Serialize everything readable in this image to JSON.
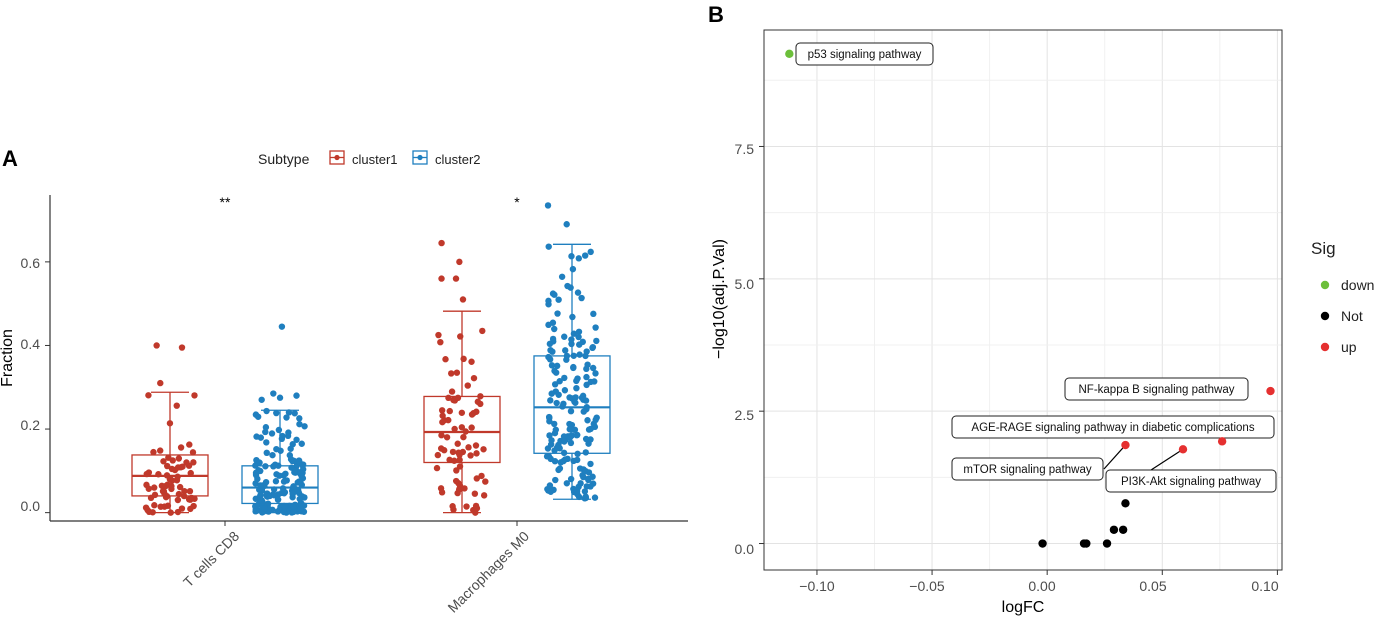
{
  "chart_data": [
    {
      "panel": "A",
      "type": "box",
      "xlabel": "",
      "ylabel": "Fraction",
      "ylim": [
        -0.02,
        0.76
      ],
      "yticks": [
        0.0,
        0.2,
        0.4,
        0.6
      ],
      "ytick_labels": [
        "0.0",
        "0.2",
        "0.4",
        "0.6"
      ],
      "categories": [
        "T cells CD8",
        "Macrophages M0"
      ],
      "legend": {
        "title": "Subtype",
        "position": "top",
        "entries": [
          "cluster1",
          "cluster2"
        ]
      },
      "colors": {
        "cluster1": "#c0392b",
        "cluster2": "#1f7fbf"
      },
      "significance": [
        "**",
        "*"
      ],
      "series": [
        {
          "name": "cluster1",
          "boxes": [
            {
              "category": "T cells CD8",
              "whisker_low": 0.0,
              "q1": 0.04,
              "median": 0.088,
              "q3": 0.138,
              "whisker_high": 0.288,
              "outliers": [
                0.4,
                0.395,
                0.31
              ]
            },
            {
              "category": "Macrophages M0",
              "whisker_low": 0.0,
              "q1": 0.12,
              "median": 0.193,
              "q3": 0.278,
              "whisker_high": 0.482,
              "outliers": [
                0.645,
                0.6,
                0.56,
                0.56,
                0.51
              ]
            }
          ]
        },
        {
          "name": "cluster2",
          "boxes": [
            {
              "category": "T cells CD8",
              "whisker_low": 0.0,
              "q1": 0.022,
              "median": 0.06,
              "q3": 0.112,
              "whisker_high": 0.245,
              "outliers": [
                0.445,
                0.285,
                0.28,
                0.275,
                0.27
              ]
            },
            {
              "category": "Macrophages M0",
              "whisker_low": 0.032,
              "q1": 0.142,
              "median": 0.252,
              "q3": 0.375,
              "whisker_high": 0.642,
              "outliers": [
                0.735,
                0.69
              ]
            }
          ]
        }
      ]
    },
    {
      "panel": "B",
      "type": "scatter",
      "xlabel": "logFC",
      "ylabel": "−log10(adj.P.Val)",
      "xlim": [
        -0.123,
        0.102
      ],
      "ylim": [
        -0.5,
        9.7
      ],
      "xticks": [
        -0.1,
        -0.05,
        0.0,
        0.05,
        0.1
      ],
      "xtick_labels": [
        "−0.10",
        "−0.05",
        "0.00",
        "0.05",
        "0.10"
      ],
      "yticks": [
        0.0,
        2.5,
        5.0,
        7.5
      ],
      "ytick_labels": [
        "0.0",
        "2.5",
        "5.0",
        "7.5"
      ],
      "legend": {
        "title": "Sig",
        "position": "right",
        "entries": [
          "down",
          "Not",
          "up"
        ]
      },
      "colors": {
        "down": "#6cbf3a",
        "Not": "#000000",
        "up": "#e53030"
      },
      "points": [
        {
          "x": -0.112,
          "y": 9.25,
          "group": "down"
        },
        {
          "x": 0.097,
          "y": 2.88,
          "group": "up"
        },
        {
          "x": 0.076,
          "y": 1.93,
          "group": "up"
        },
        {
          "x": 0.034,
          "y": 1.86,
          "group": "up"
        },
        {
          "x": 0.059,
          "y": 1.78,
          "group": "up"
        },
        {
          "x": 0.034,
          "y": 0.76,
          "group": "Not"
        },
        {
          "x": 0.029,
          "y": 0.26,
          "group": "Not"
        },
        {
          "x": 0.033,
          "y": 0.26,
          "group": "Not"
        },
        {
          "x": -0.002,
          "y": 0.0,
          "group": "Not"
        },
        {
          "x": 0.016,
          "y": 0.0,
          "group": "Not"
        },
        {
          "x": 0.017,
          "y": 0.0,
          "group": "Not"
        },
        {
          "x": 0.026,
          "y": 0.0,
          "group": "Not"
        }
      ],
      "annotations": [
        {
          "text": "p53 signaling pathway",
          "x": -0.112,
          "y": 9.25
        },
        {
          "text": "NF-kappa B signaling pathway",
          "x": 0.097,
          "y": 2.88
        },
        {
          "text": "AGE-RAGE signaling pathway in diabetic complications",
          "x": 0.076,
          "y": 1.93
        },
        {
          "text": "mTOR signaling pathway",
          "x": 0.034,
          "y": 1.86
        },
        {
          "text": "PI3K-Akt signaling pathway",
          "x": 0.059,
          "y": 1.78
        }
      ]
    }
  ]
}
